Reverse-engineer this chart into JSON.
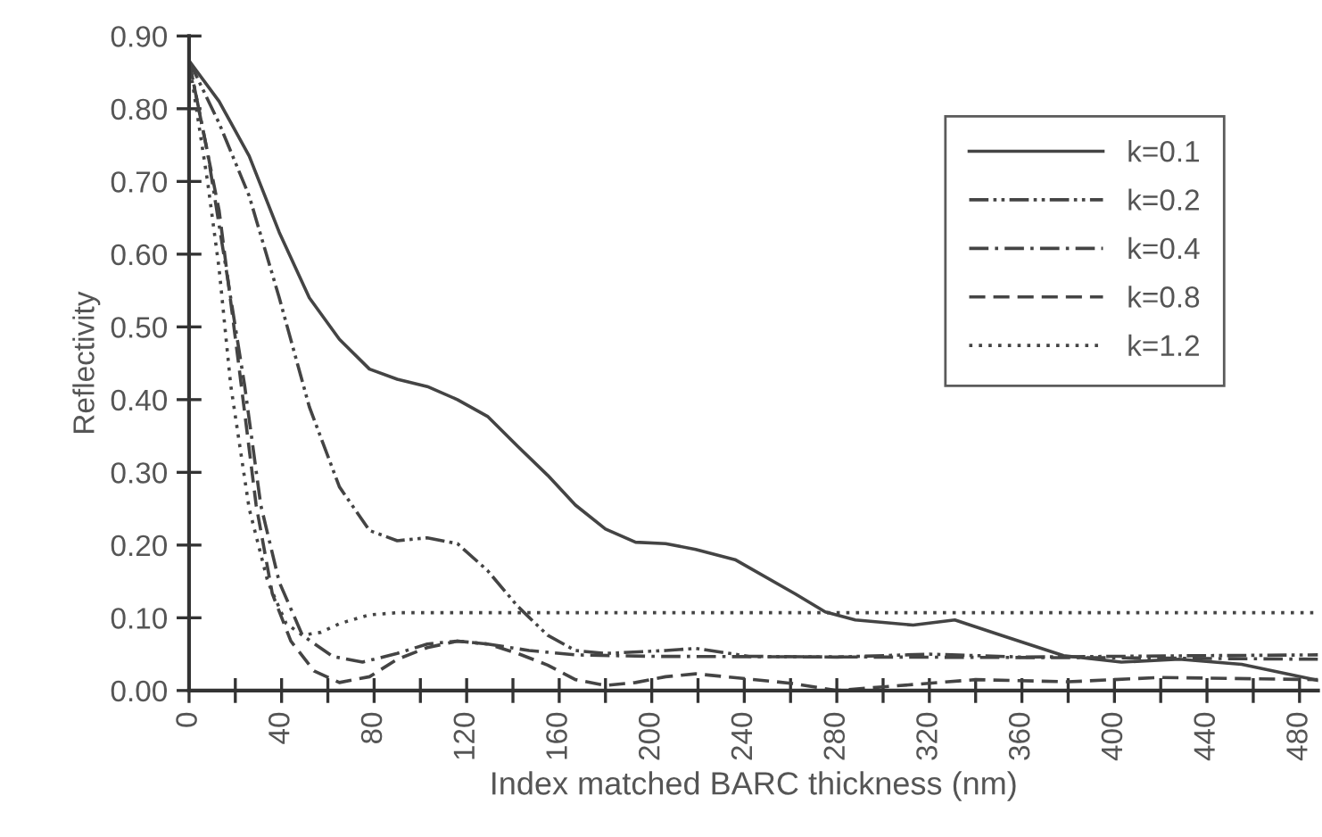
{
  "chart_data": {
    "type": "line",
    "xlabel": "Index matched BARC thickness (nm)",
    "ylabel": "Reflectivity",
    "xlim": [
      0,
      488
    ],
    "ylim": [
      0,
      0.9
    ],
    "xticks": [
      0,
      {
        "value": 20,
        "label": null
      },
      40,
      {
        "value": 60,
        "label": null
      },
      80,
      {
        "value": 100,
        "label": null
      },
      120,
      {
        "value": 140,
        "label": null
      },
      160,
      {
        "value": 180,
        "label": null
      },
      200,
      {
        "value": 220,
        "label": null
      },
      240,
      {
        "value": 260,
        "label": null
      },
      280,
      {
        "value": 300,
        "label": null
      },
      320,
      {
        "value": 340,
        "label": null
      },
      360,
      {
        "value": 380,
        "label": null
      },
      400,
      {
        "value": 420,
        "label": null
      },
      440,
      {
        "value": 460,
        "label": null
      },
      480
    ],
    "yticks": [
      {
        "value": 0,
        "label": "0.00"
      },
      {
        "value": 0.1,
        "label": "0.10"
      },
      {
        "value": 0.2,
        "label": "0.20"
      },
      {
        "value": 0.3,
        "label": "0.30"
      },
      {
        "value": 0.4,
        "label": "0.40"
      },
      {
        "value": 0.5,
        "label": "0.50"
      },
      {
        "value": 0.6,
        "label": "0.60"
      },
      {
        "value": 0.7,
        "label": "0.70"
      },
      {
        "value": 0.8,
        "label": "0.80"
      },
      {
        "value": 0.9,
        "label": "0.90"
      }
    ],
    "grid": false,
    "legend": "top right",
    "marker": "none",
    "series": [
      {
        "name": "k=0.1",
        "color": "#444444",
        "line_style": "solid",
        "x": [
          0,
          13,
          26,
          39,
          52,
          65,
          78,
          90,
          103,
          116,
          129,
          142,
          155,
          167,
          180,
          193,
          206,
          219,
          236,
          262,
          275,
          288,
          313,
          331,
          352,
          378,
          403,
          428,
          455,
          488
        ],
        "values": [
          0.866,
          0.81,
          0.735,
          0.63,
          0.54,
          0.483,
          0.442,
          0.428,
          0.418,
          0.4,
          0.377,
          0.336,
          0.296,
          0.255,
          0.222,
          0.204,
          0.202,
          0.194,
          0.18,
          0.133,
          0.108,
          0.097,
          0.09,
          0.097,
          0.075,
          0.048,
          0.039,
          0.043,
          0.036,
          0.014
        ]
      },
      {
        "name": "k=0.2",
        "color": "#444444",
        "line_style": "dashdotdot",
        "x": [
          0,
          13,
          26,
          39,
          52,
          65,
          78,
          90,
          103,
          116,
          129,
          142,
          155,
          167,
          180,
          206,
          219,
          242,
          280,
          320,
          360,
          400,
          440,
          488
        ],
        "values": [
          0.866,
          0.78,
          0.68,
          0.54,
          0.39,
          0.28,
          0.22,
          0.206,
          0.21,
          0.202,
          0.165,
          0.116,
          0.076,
          0.055,
          0.051,
          0.055,
          0.058,
          0.047,
          0.046,
          0.05,
          0.046,
          0.047,
          0.048,
          0.049
        ]
      },
      {
        "name": "k=0.4",
        "color": "#444444",
        "line_style": "dashdot",
        "x": [
          0,
          8,
          16,
          24,
          31,
          39,
          49,
          62,
          75,
          90,
          103,
          116,
          129,
          147,
          167,
          200,
          300,
          400,
          488
        ],
        "values": [
          0.866,
          0.74,
          0.58,
          0.42,
          0.255,
          0.149,
          0.076,
          0.047,
          0.039,
          0.051,
          0.064,
          0.068,
          0.064,
          0.055,
          0.049,
          0.047,
          0.046,
          0.045,
          0.043
        ]
      },
      {
        "name": "k=0.8",
        "color": "#444444",
        "line_style": "dashed",
        "x": [
          0,
          13,
          21,
          29,
          36,
          44,
          54,
          65,
          78,
          90,
          103,
          116,
          129,
          142,
          155,
          167,
          180,
          193,
          206,
          219,
          232,
          260,
          280,
          300,
          340,
          380,
          420,
          488
        ],
        "values": [
          0.866,
          0.66,
          0.46,
          0.255,
          0.133,
          0.068,
          0.027,
          0.011,
          0.019,
          0.043,
          0.059,
          0.068,
          0.064,
          0.051,
          0.035,
          0.015,
          0.007,
          0.011,
          0.019,
          0.023,
          0.019,
          0.01,
          0.0,
          0.005,
          0.015,
          0.012,
          0.018,
          0.015
        ]
      },
      {
        "name": "k=1.2",
        "color": "#444444",
        "line_style": "dotted",
        "x": [
          0,
          8,
          13,
          18,
          26,
          34,
          42,
          49,
          57,
          65,
          78,
          90,
          150,
          250,
          350,
          488
        ],
        "values": [
          0.866,
          0.7,
          0.58,
          0.42,
          0.25,
          0.15,
          0.092,
          0.076,
          0.08,
          0.092,
          0.104,
          0.107,
          0.107,
          0.107,
          0.107,
          0.107
        ]
      }
    ]
  }
}
